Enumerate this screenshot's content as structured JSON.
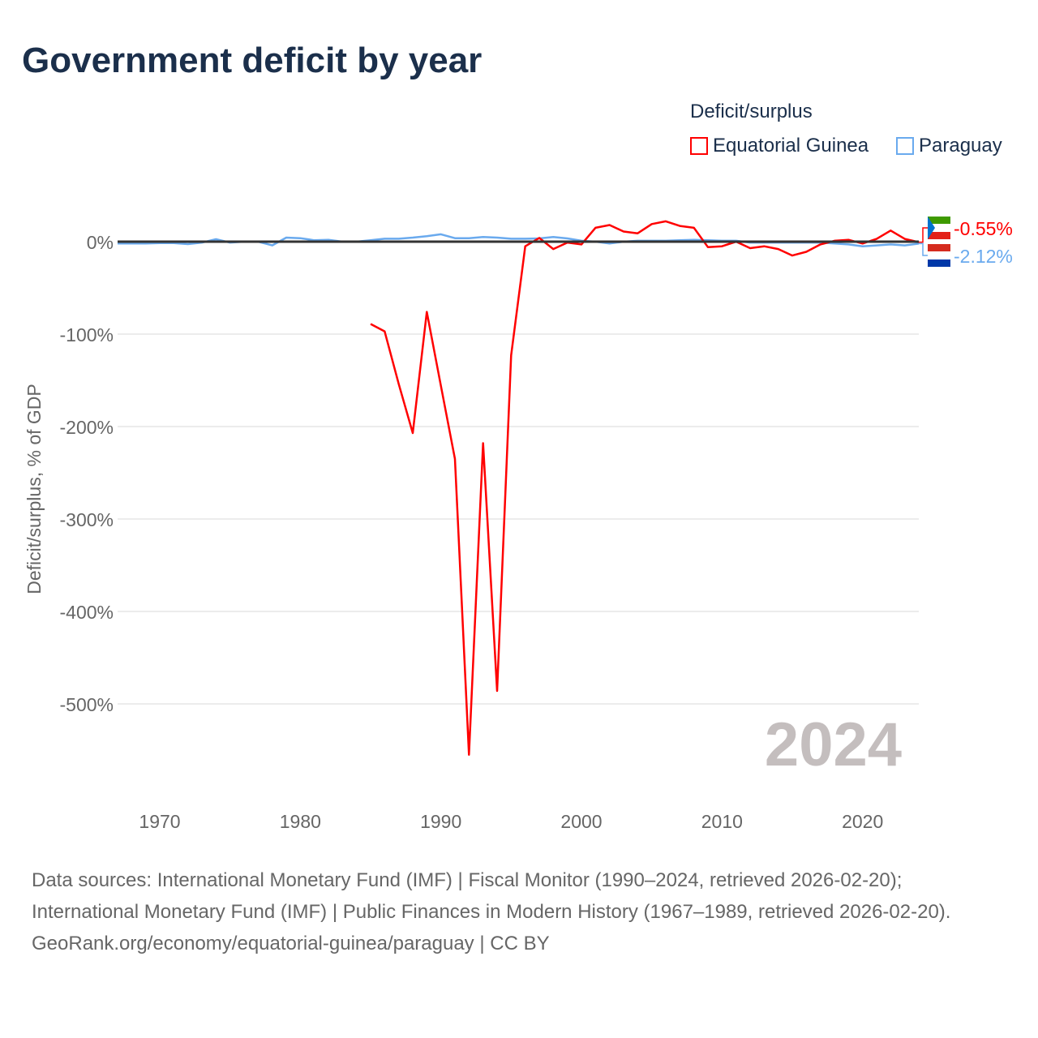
{
  "title": "Government deficit by year",
  "footer": {
    "sources": "Data sources: International Monetary Fund (IMF) | Fiscal Monitor (1990–2024, retrieved 2026-02-20); International Monetary Fund (IMF) | Public Finances in Modern History (1967–1989, retrieved 2026-02-20).",
    "credit": "GeoRank.org/economy/equatorial-guinea/paraguay | CC BY"
  },
  "chart_data": {
    "type": "line",
    "title": "Government deficit by year",
    "xlabel": "",
    "ylabel": "Deficit/surplus, % of GDP",
    "xlim": [
      1967,
      2024
    ],
    "ylim": [
      -600,
      30
    ],
    "x_ticks": [
      1970,
      1980,
      1990,
      2000,
      2010,
      2020
    ],
    "y_ticks": [
      0,
      -100,
      -200,
      -300,
      -400,
      -500
    ],
    "y_tick_labels": [
      "0%",
      "-100%",
      "-200%",
      "-300%",
      "-400%",
      "-500%"
    ],
    "grid": true,
    "legend_title": "Deficit/surplus",
    "legend_position": "top-right",
    "watermark_year": "2024",
    "series": [
      {
        "name": "Equatorial Guinea",
        "color": "#ff0000",
        "end_label": "-0.55%",
        "x": [
          1985,
          1986,
          1987,
          1988,
          1989,
          1990,
          1991,
          1992,
          1993,
          1994,
          1995,
          1996,
          1997,
          1998,
          1999,
          2000,
          2001,
          2002,
          2003,
          2004,
          2005,
          2006,
          2007,
          2008,
          2009,
          2010,
          2011,
          2012,
          2013,
          2014,
          2015,
          2016,
          2017,
          2018,
          2019,
          2020,
          2021,
          2022,
          2023,
          2024
        ],
        "values": [
          -89,
          -97,
          -154,
          -207,
          -76,
          -156,
          -235,
          -555,
          -218,
          -486,
          -123,
          -5,
          4,
          -8,
          -1,
          -3,
          15,
          18,
          11,
          9,
          19,
          22,
          17,
          15,
          -6,
          -5,
          0,
          -7,
          -5,
          -8,
          -15,
          -11,
          -3,
          1,
          2,
          -2,
          3,
          12,
          3,
          -0.55
        ]
      },
      {
        "name": "Paraguay",
        "color": "#6aaaee",
        "end_label": "-2.12%",
        "x": [
          1967,
          1968,
          1969,
          1970,
          1971,
          1972,
          1973,
          1974,
          1975,
          1976,
          1977,
          1978,
          1979,
          1980,
          1981,
          1982,
          1983,
          1984,
          1985,
          1986,
          1987,
          1988,
          1989,
          1990,
          1991,
          1992,
          1993,
          1994,
          1995,
          1996,
          1997,
          1998,
          1999,
          2000,
          2001,
          2002,
          2003,
          2004,
          2005,
          2006,
          2007,
          2008,
          2009,
          2010,
          2011,
          2012,
          2013,
          2014,
          2015,
          2016,
          2017,
          2018,
          2019,
          2020,
          2021,
          2022,
          2023,
          2024
        ],
        "values": [
          -2,
          -2,
          -2,
          -1.5,
          -1.5,
          -2.6,
          -1,
          2.6,
          -1,
          0,
          0,
          -4,
          4.4,
          3.8,
          1.5,
          2,
          0,
          0,
          1.5,
          3.2,
          3.2,
          4.4,
          6,
          8,
          3.8,
          3.8,
          5,
          4.4,
          3.2,
          3.2,
          3.5,
          5,
          3.5,
          1,
          0,
          -2,
          0,
          1,
          1,
          1,
          1.5,
          2,
          1.5,
          1,
          1,
          -1,
          -1,
          -1,
          -1,
          -1,
          -1,
          -2,
          -3,
          -5,
          -4,
          -3,
          -4,
          -2.12
        ]
      }
    ]
  }
}
